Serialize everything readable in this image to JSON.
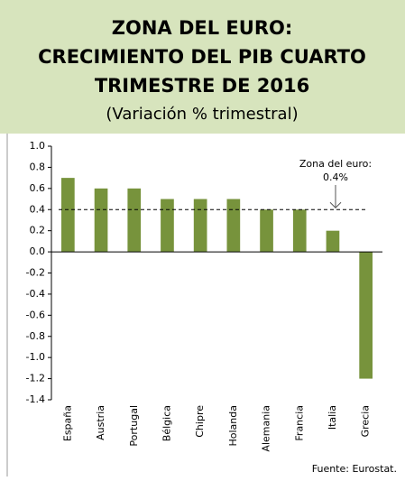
{
  "chart_data": {
    "type": "bar",
    "title": [
      "ZONA DEL EURO:",
      "CRECIMIENTO DEL PIB CUARTO",
      "TRIMESTRE DE 2016"
    ],
    "subtitle": "(Variación % trimestral)",
    "categories": [
      "España",
      "Austria",
      "Portugal",
      "Bélgica",
      "Chipre",
      "Holanda",
      "Alemania",
      "Francia",
      "Italia",
      "Grecia"
    ],
    "values": [
      0.7,
      0.6,
      0.6,
      0.5,
      0.5,
      0.5,
      0.4,
      0.4,
      0.2,
      -1.2
    ],
    "color": "#77933c",
    "ylim": [
      -1.4,
      1.0
    ],
    "yticks": [
      {
        "value": 1.0,
        "label": "1.0"
      },
      0.8,
      0.6,
      0.4,
      0.2,
      {
        "value": 0,
        "label": "0.0"
      },
      -0.2,
      -0.4,
      -0.6,
      -0.8,
      {
        "value": -1.0,
        "label": "-1.0"
      },
      -1.2,
      -1.4
    ],
    "reference_line": {
      "value": 0.4,
      "label": [
        "Zona del euro:",
        "0.4%"
      ]
    },
    "source": "Fuente:  Eurostat."
  }
}
